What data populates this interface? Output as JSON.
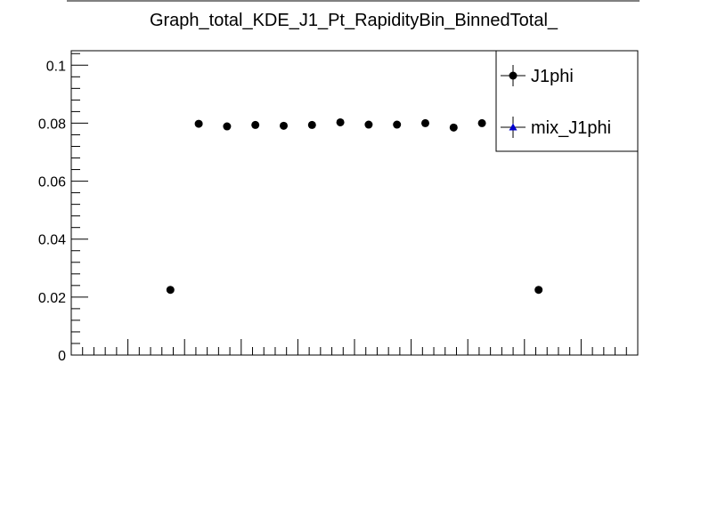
{
  "chart_data": {
    "type": "scatter",
    "title": "Graph_total_KDE_J1_Pt_RapidityBin_BinnedTotal_",
    "xlabel": "",
    "ylabel": "",
    "xlim": [
      0,
      20
    ],
    "ylim": [
      0,
      0.105
    ],
    "y_ticks": [
      {
        "value": 0,
        "label": "0"
      },
      {
        "value": 0.02,
        "label": "0.02"
      },
      {
        "value": 0.04,
        "label": "0.04"
      },
      {
        "value": 0.06,
        "label": "0.06"
      },
      {
        "value": 0.08,
        "label": "0.08"
      },
      {
        "value": 0.1,
        "label": "0.1"
      }
    ],
    "grid": false,
    "legend_placement": "top-right",
    "series": [
      {
        "name": "J1phi",
        "marker": "circle",
        "color": "#000000",
        "points": [
          {
            "x": 3.5,
            "y": 0.0225
          },
          {
            "x": 4.5,
            "y": 0.0798
          },
          {
            "x": 5.5,
            "y": 0.0789
          },
          {
            "x": 6.5,
            "y": 0.0794
          },
          {
            "x": 7.5,
            "y": 0.0791
          },
          {
            "x": 8.5,
            "y": 0.0794
          },
          {
            "x": 9.5,
            "y": 0.0803
          },
          {
            "x": 10.5,
            "y": 0.0795
          },
          {
            "x": 11.5,
            "y": 0.0795
          },
          {
            "x": 12.5,
            "y": 0.08
          },
          {
            "x": 13.5,
            "y": 0.0785
          },
          {
            "x": 14.5,
            "y": 0.08
          },
          {
            "x": 16.5,
            "y": 0.0225
          }
        ]
      },
      {
        "name": "mix_J1phi",
        "marker": "triangle",
        "color": "#0000cc",
        "points": []
      }
    ]
  }
}
